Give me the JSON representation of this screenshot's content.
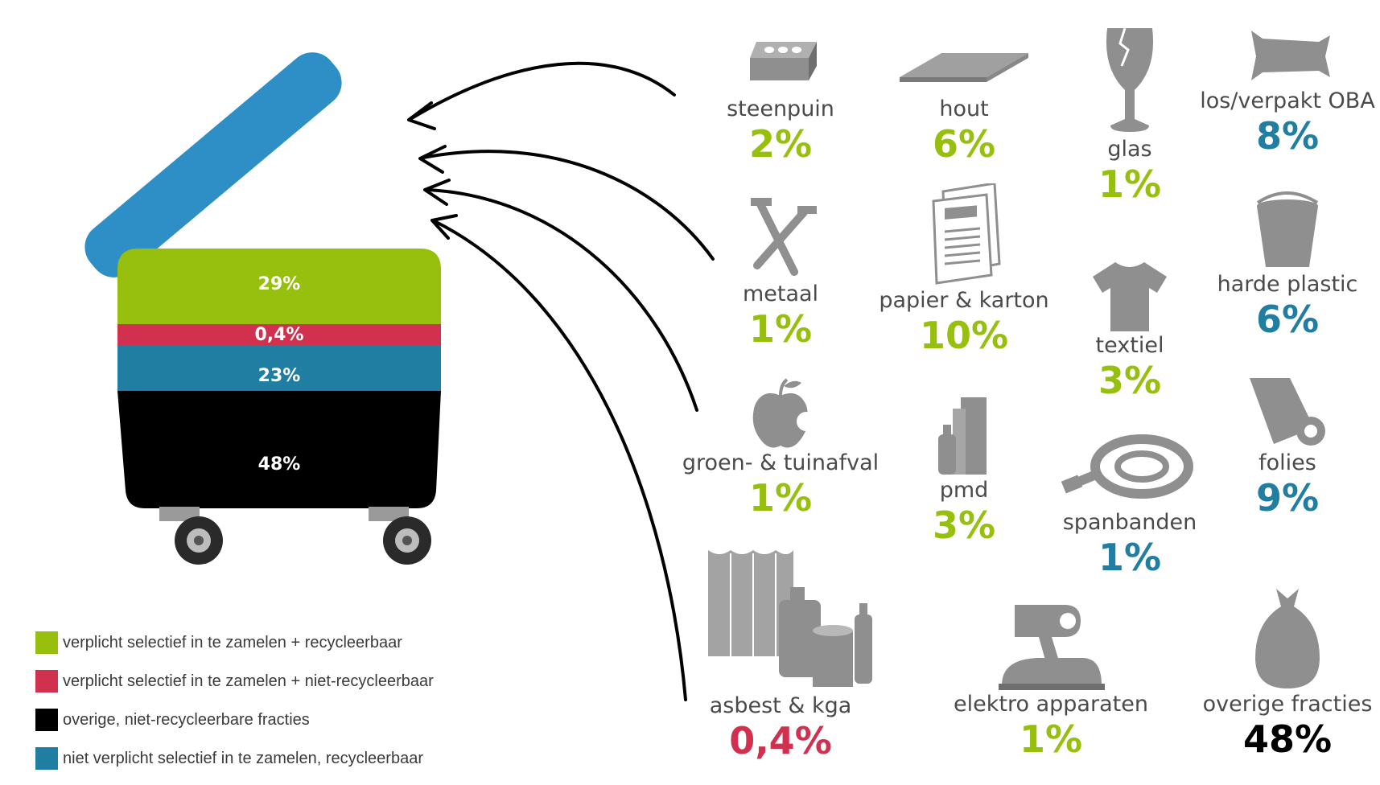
{
  "colors": {
    "green": "#97bf0d",
    "red": "#d1304f",
    "blue": "#1f7ea1",
    "black": "#000000",
    "icon_grey": "#8f8f8f"
  },
  "bin": {
    "segments": [
      {
        "label": "29%",
        "color": "#97bf0d"
      },
      {
        "label": "0,4%",
        "color": "#d1304f"
      },
      {
        "label": "23%",
        "color": "#1f7ea1"
      },
      {
        "label": "48%",
        "color": "#000000"
      }
    ]
  },
  "legend": [
    {
      "label": "verplicht selectief in te zamelen + recycleerbaar",
      "color": "#97bf0d"
    },
    {
      "label": "verplicht selectief in te zamelen + niet-recycleerbaar",
      "color": "#d1304f"
    },
    {
      "label": "overige, niet-recycleerbare fracties",
      "color": "#000000"
    },
    {
      "label": "niet verplicht selectief in te zamelen, recycleerbaar",
      "color": "#1f7ea1"
    }
  ],
  "items": {
    "steenpuin": {
      "name": "steenpuin",
      "value": "2%",
      "icon": "brick-icon"
    },
    "hout": {
      "name": "hout",
      "value": "6%",
      "icon": "plank-icon"
    },
    "glas": {
      "name": "glas",
      "value": "1%",
      "icon": "broken-glass-icon"
    },
    "oba": {
      "name": "los/verpakt OBA",
      "value": "8%",
      "icon": "packed-bag-icon"
    },
    "metaal": {
      "name": "metaal",
      "value": "1%",
      "icon": "nails-icon"
    },
    "papier": {
      "name": "papier & karton",
      "value": "10%",
      "icon": "newspaper-icon"
    },
    "textiel": {
      "name": "textiel",
      "value": "3%",
      "icon": "tshirt-icon"
    },
    "harde_plastic": {
      "name": "harde plastic",
      "value": "6%",
      "icon": "bucket-icon"
    },
    "groen": {
      "name": "groen- & tuinafval",
      "value": "1%",
      "icon": "apple-icon"
    },
    "pmd": {
      "name": "pmd",
      "value": "3%",
      "icon": "cans-bottle-icon"
    },
    "spanbanden": {
      "name": "spanbanden",
      "value": "1%",
      "icon": "strap-icon"
    },
    "folies": {
      "name": "folies",
      "value": "9%",
      "icon": "foil-roll-icon"
    },
    "asbest": {
      "name": "asbest & kga",
      "value": "0,4%",
      "icon": "asbestos-chemicals-icon"
    },
    "elektro": {
      "name": "elektro apparaten",
      "value": "1%",
      "icon": "appliances-icon"
    },
    "overige": {
      "name": "overige fracties",
      "value": "48%",
      "icon": "garbage-bag-icon"
    }
  }
}
